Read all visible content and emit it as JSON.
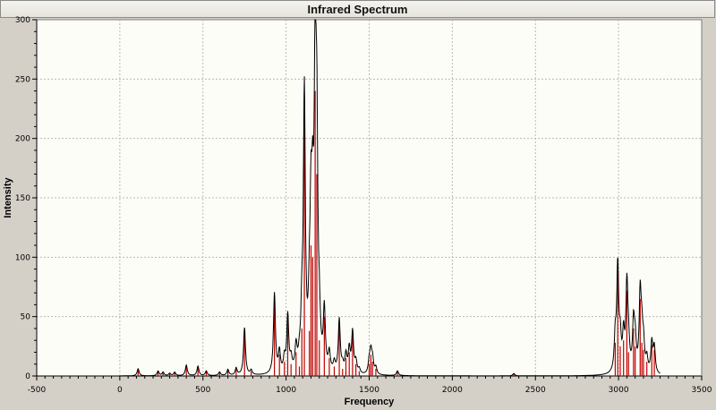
{
  "chart_data": {
    "type": "line",
    "title": "Infrared Spectrum",
    "xlabel": "Frequency",
    "ylabel": "Intensity",
    "xlim": [
      -500,
      3500
    ],
    "ylim": [
      0,
      300
    ],
    "x_ticks": [
      -500,
      0,
      500,
      1000,
      1500,
      2000,
      2500,
      3000,
      3500
    ],
    "y_ticks": [
      0,
      50,
      100,
      150,
      200,
      250,
      300
    ],
    "grid": true,
    "colors": {
      "envelope": "#000000",
      "sticks": "#c00000",
      "grid": "#b8b8b8",
      "plot_bg": "#fdfdf8"
    },
    "series": [
      {
        "kind": "stick",
        "x": [
          110,
          230,
          260,
          300,
          330,
          400,
          470,
          520,
          600,
          650,
          700,
          750,
          790,
          930,
          960,
          990,
          1010,
          1030,
          1060,
          1080,
          1095,
          1110,
          1140,
          1150,
          1160,
          1175,
          1185,
          1200,
          1230,
          1260,
          1290,
          1320,
          1340,
          1360,
          1380,
          1400,
          1420,
          1440,
          1500,
          1510,
          1520,
          1540,
          1670,
          2370,
          2980,
          2995,
          3010,
          3030,
          3050,
          3060,
          3090,
          3100,
          3130,
          3140,
          3150,
          3170,
          3200,
          3215
        ],
        "values": [
          6,
          4,
          3,
          2,
          3,
          9,
          8,
          4,
          3,
          5,
          6,
          40,
          4,
          68,
          18,
          12,
          48,
          10,
          20,
          8,
          40,
          232,
          38,
          110,
          100,
          240,
          170,
          30,
          50,
          15,
          8,
          45,
          6,
          15,
          20,
          35,
          10,
          4,
          10,
          18,
          12,
          6,
          4,
          2,
          28,
          88,
          25,
          30,
          72,
          20,
          40,
          25,
          65,
          28,
          22,
          12,
          26,
          22
        ]
      }
    ]
  }
}
